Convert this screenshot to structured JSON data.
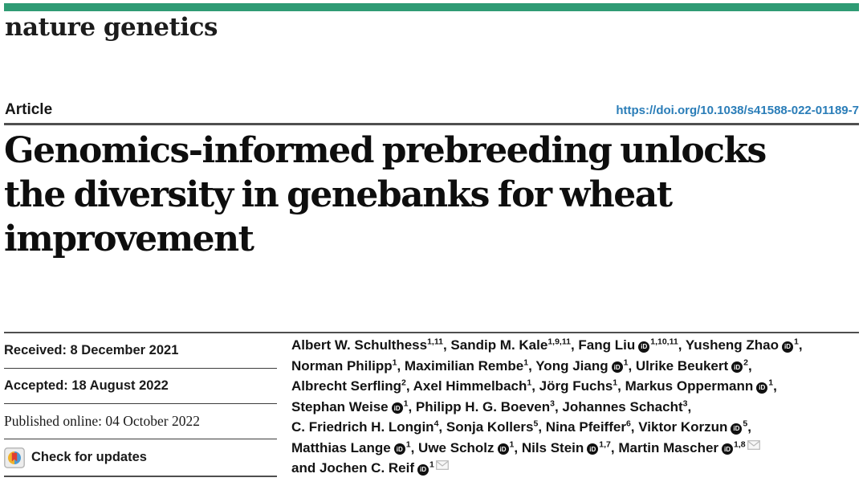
{
  "brand": {
    "wordmark": "nature genetics",
    "bar_color": "#2f9b74"
  },
  "article": {
    "label": "Article",
    "doi": "https://doi.org/10.1038/s41588-022-01189-7",
    "doi_color": "#2a7db8"
  },
  "title": {
    "lines": [
      "Genomics-informed prebreeding unlocks",
      "the diversity in genebanks for wheat",
      "improvement"
    ]
  },
  "meta": {
    "received": "Received: 8 December 2021",
    "accepted": "Accepted: 18 August 2022",
    "published": "Published online: 04 October 2022",
    "check_updates": "Check for updates"
  },
  "icons": {
    "crossmark": "crossmark-icon",
    "orcid": "orcid-id-icon",
    "orcid_label": "iD",
    "envelope": "envelope-icon"
  },
  "authors": {
    "lines": [
      [
        {
          "text": "Albert W. Schulthess",
          "sup": "1,11",
          "sep": ", "
        },
        {
          "text": "Sandip M. Kale",
          "sup": "1,9,11",
          "sep": ", "
        },
        {
          "text": "Fang Liu",
          "orcid": true,
          "sup": "1,10,11",
          "sep": ", "
        },
        {
          "text": "Yusheng Zhao",
          "orcid": true,
          "sup": "1",
          "sep": ","
        }
      ],
      [
        {
          "text": "Norman Philipp",
          "sup": "1",
          "sep": ", "
        },
        {
          "text": "Maximilian Rembe",
          "sup": "1",
          "sep": ", "
        },
        {
          "text": "Yong Jiang",
          "orcid": true,
          "sup": "1",
          "sep": ", "
        },
        {
          "text": "Ulrike Beukert",
          "orcid": true,
          "sup": "2",
          "sep": ","
        }
      ],
      [
        {
          "text": "Albrecht Serfling",
          "sup": "2",
          "sep": ", "
        },
        {
          "text": "Axel Himmelbach",
          "sup": "1",
          "sep": ", "
        },
        {
          "text": "Jörg Fuchs",
          "sup": "1",
          "sep": ", "
        },
        {
          "text": "Markus Oppermann",
          "orcid": true,
          "sup": "1",
          "sep": ","
        }
      ],
      [
        {
          "text": "Stephan Weise",
          "orcid": true,
          "sup": "1",
          "sep": ", "
        },
        {
          "text": "Philipp H. G. Boeven",
          "sup": "3",
          "sep": ", "
        },
        {
          "text": "Johannes Schacht",
          "sup": "3",
          "sep": ","
        }
      ],
      [
        {
          "text": "C. Friedrich H. Longin",
          "sup": "4",
          "sep": ", "
        },
        {
          "text": "Sonja Kollers",
          "sup": "5",
          "sep": ", "
        },
        {
          "text": "Nina Pfeiffer",
          "sup": "6",
          "sep": ", "
        },
        {
          "text": "Viktor Korzun",
          "orcid": true,
          "sup": "5",
          "sep": ","
        }
      ],
      [
        {
          "text": "Matthias Lange",
          "orcid": true,
          "sup": "1",
          "sep": ", "
        },
        {
          "text": "Uwe Scholz",
          "orcid": true,
          "sup": "1",
          "sep": ", "
        },
        {
          "text": "Nils Stein",
          "orcid": true,
          "sup": "1,7",
          "sep": ", "
        },
        {
          "text": "Martin Mascher",
          "orcid": true,
          "sup": "1,8",
          "envelope": true,
          "sep": ""
        }
      ],
      [
        {
          "text": "and Jochen C. Reif",
          "orcid": true,
          "sup": "1",
          "envelope": true,
          "sep": ""
        }
      ]
    ]
  }
}
